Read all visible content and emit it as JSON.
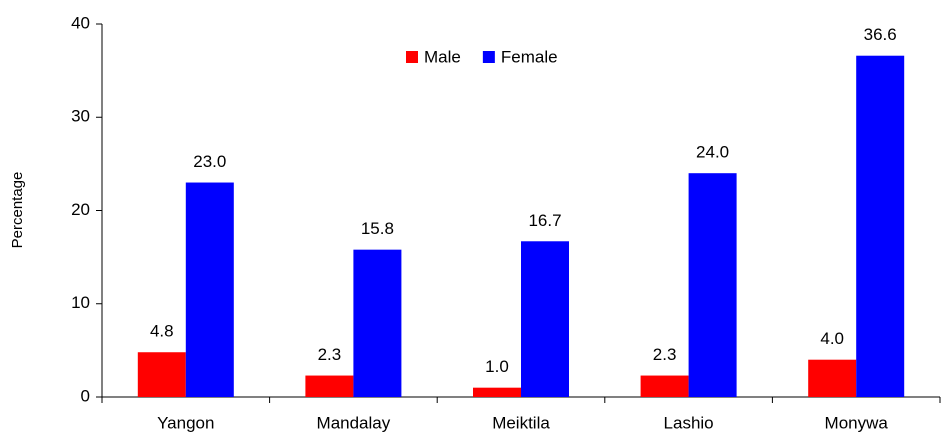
{
  "chart_data": {
    "type": "bar",
    "y_label": "Percentage",
    "categories": [
      "Yangon",
      "Mandalay",
      "Meiktila",
      "Lashio",
      "Monywa"
    ],
    "series": [
      {
        "name": "Male",
        "color": "#ff0000",
        "values": [
          4.8,
          2.3,
          1.0,
          2.3,
          4.0
        ],
        "value_labels": [
          "4.8",
          "2.3",
          "1.0",
          "2.3",
          "4.0"
        ]
      },
      {
        "name": "Female",
        "color": "#0000ff",
        "values": [
          23.0,
          15.8,
          16.7,
          24.0,
          36.6
        ],
        "value_labels": [
          "23.0",
          "15.8",
          "16.7",
          "24.0",
          "36.6"
        ]
      }
    ],
    "ylim": [
      0,
      40
    ],
    "yticks": [
      0,
      10,
      20,
      30,
      40
    ],
    "grid": false,
    "legend": "top"
  }
}
